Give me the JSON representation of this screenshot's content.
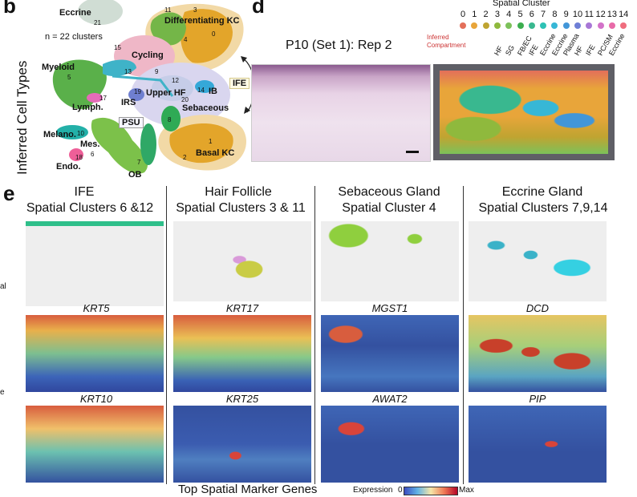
{
  "figure": {
    "panel_b": {
      "letter": "b",
      "y_title": "Inferred Cell Types",
      "n_clusters": "n = 22 clusters",
      "labels": {
        "eccrine": "Eccrine",
        "diff_kc": "Differentiating KC",
        "cycling": "Cycling",
        "myeloid": "Myeloid",
        "lymph": "Lymph.",
        "irs": "IRS",
        "upper_hf": "Upper HF",
        "ib": "IB",
        "sebaceous": "Sebaceous",
        "psu": "PSU",
        "melano": "Melano.",
        "mes": "Mes.",
        "endo": "Endo.",
        "ob": "OB",
        "basal_kc": "Basal KC",
        "ife": "IFE"
      },
      "cluster_numbers": {
        "c21": "21",
        "c11": "11",
        "c3": "3",
        "c0": "0",
        "c4": "4",
        "c15": "15",
        "c9": "9",
        "c13": "13",
        "c12": "12",
        "c5": "5",
        "c17": "17",
        "c19": "19",
        "c14": "14",
        "c20": "20",
        "c8": "8",
        "c10": "10",
        "c6": "6",
        "c7": "7",
        "c18": "18",
        "c1": "1",
        "c2": "2"
      }
    },
    "panel_d": {
      "letter": "d",
      "sample_title": "P10 (Set 1): Rep 2",
      "legend_title": "Spatial Cluster",
      "legend_numbers": [
        "0",
        "1",
        "2",
        "3",
        "4",
        "5",
        "6",
        "7",
        "8",
        "9",
        "10",
        "11",
        "12",
        "13",
        "14"
      ],
      "legend_colors": [
        "#e36f5a",
        "#e8a53a",
        "#bfa431",
        "#8fb93d",
        "#7cc15a",
        "#3cae4f",
        "#39b88f",
        "#2ec2b5",
        "#37b7d6",
        "#4296d8",
        "#6e7fd6",
        "#a877d6",
        "#d372c9",
        "#e86aa8",
        "#ef6d7e"
      ],
      "compartment_label": "Inferred Compartment",
      "compartments": [
        "HF",
        "SG",
        "FB/EC",
        "IFE",
        "Eccrine",
        "Eccrine",
        "Plasma",
        "HF",
        "IFE",
        "PC/SM",
        "Eccrine"
      ]
    },
    "panel_e": {
      "letter": "e",
      "columns": [
        {
          "title": "IFE",
          "subtitle": "Spatial Clusters 6 &12",
          "gene1": "KRT5",
          "gene2": "KRT10"
        },
        {
          "title": "Hair Follicle",
          "subtitle": "Spatial Clusters 3 & 11",
          "gene1": "KRT17",
          "gene2": "KRT25"
        },
        {
          "title": "Sebaceous Gland",
          "subtitle": "Spatial Cluster 4",
          "gene1": "MGST1",
          "gene2": "AWAT2"
        },
        {
          "title": "Eccrine Gland",
          "subtitle": "Spatial Clusters 7,9,14",
          "gene1": "DCD",
          "gene2": "PIP"
        }
      ],
      "footer": "Top Spatial Marker Genes",
      "colorbar_label": "Expression",
      "colorbar_min": "0",
      "colorbar_max": "Max",
      "left_edge_fragments": [
        "al",
        "e"
      ]
    }
  }
}
